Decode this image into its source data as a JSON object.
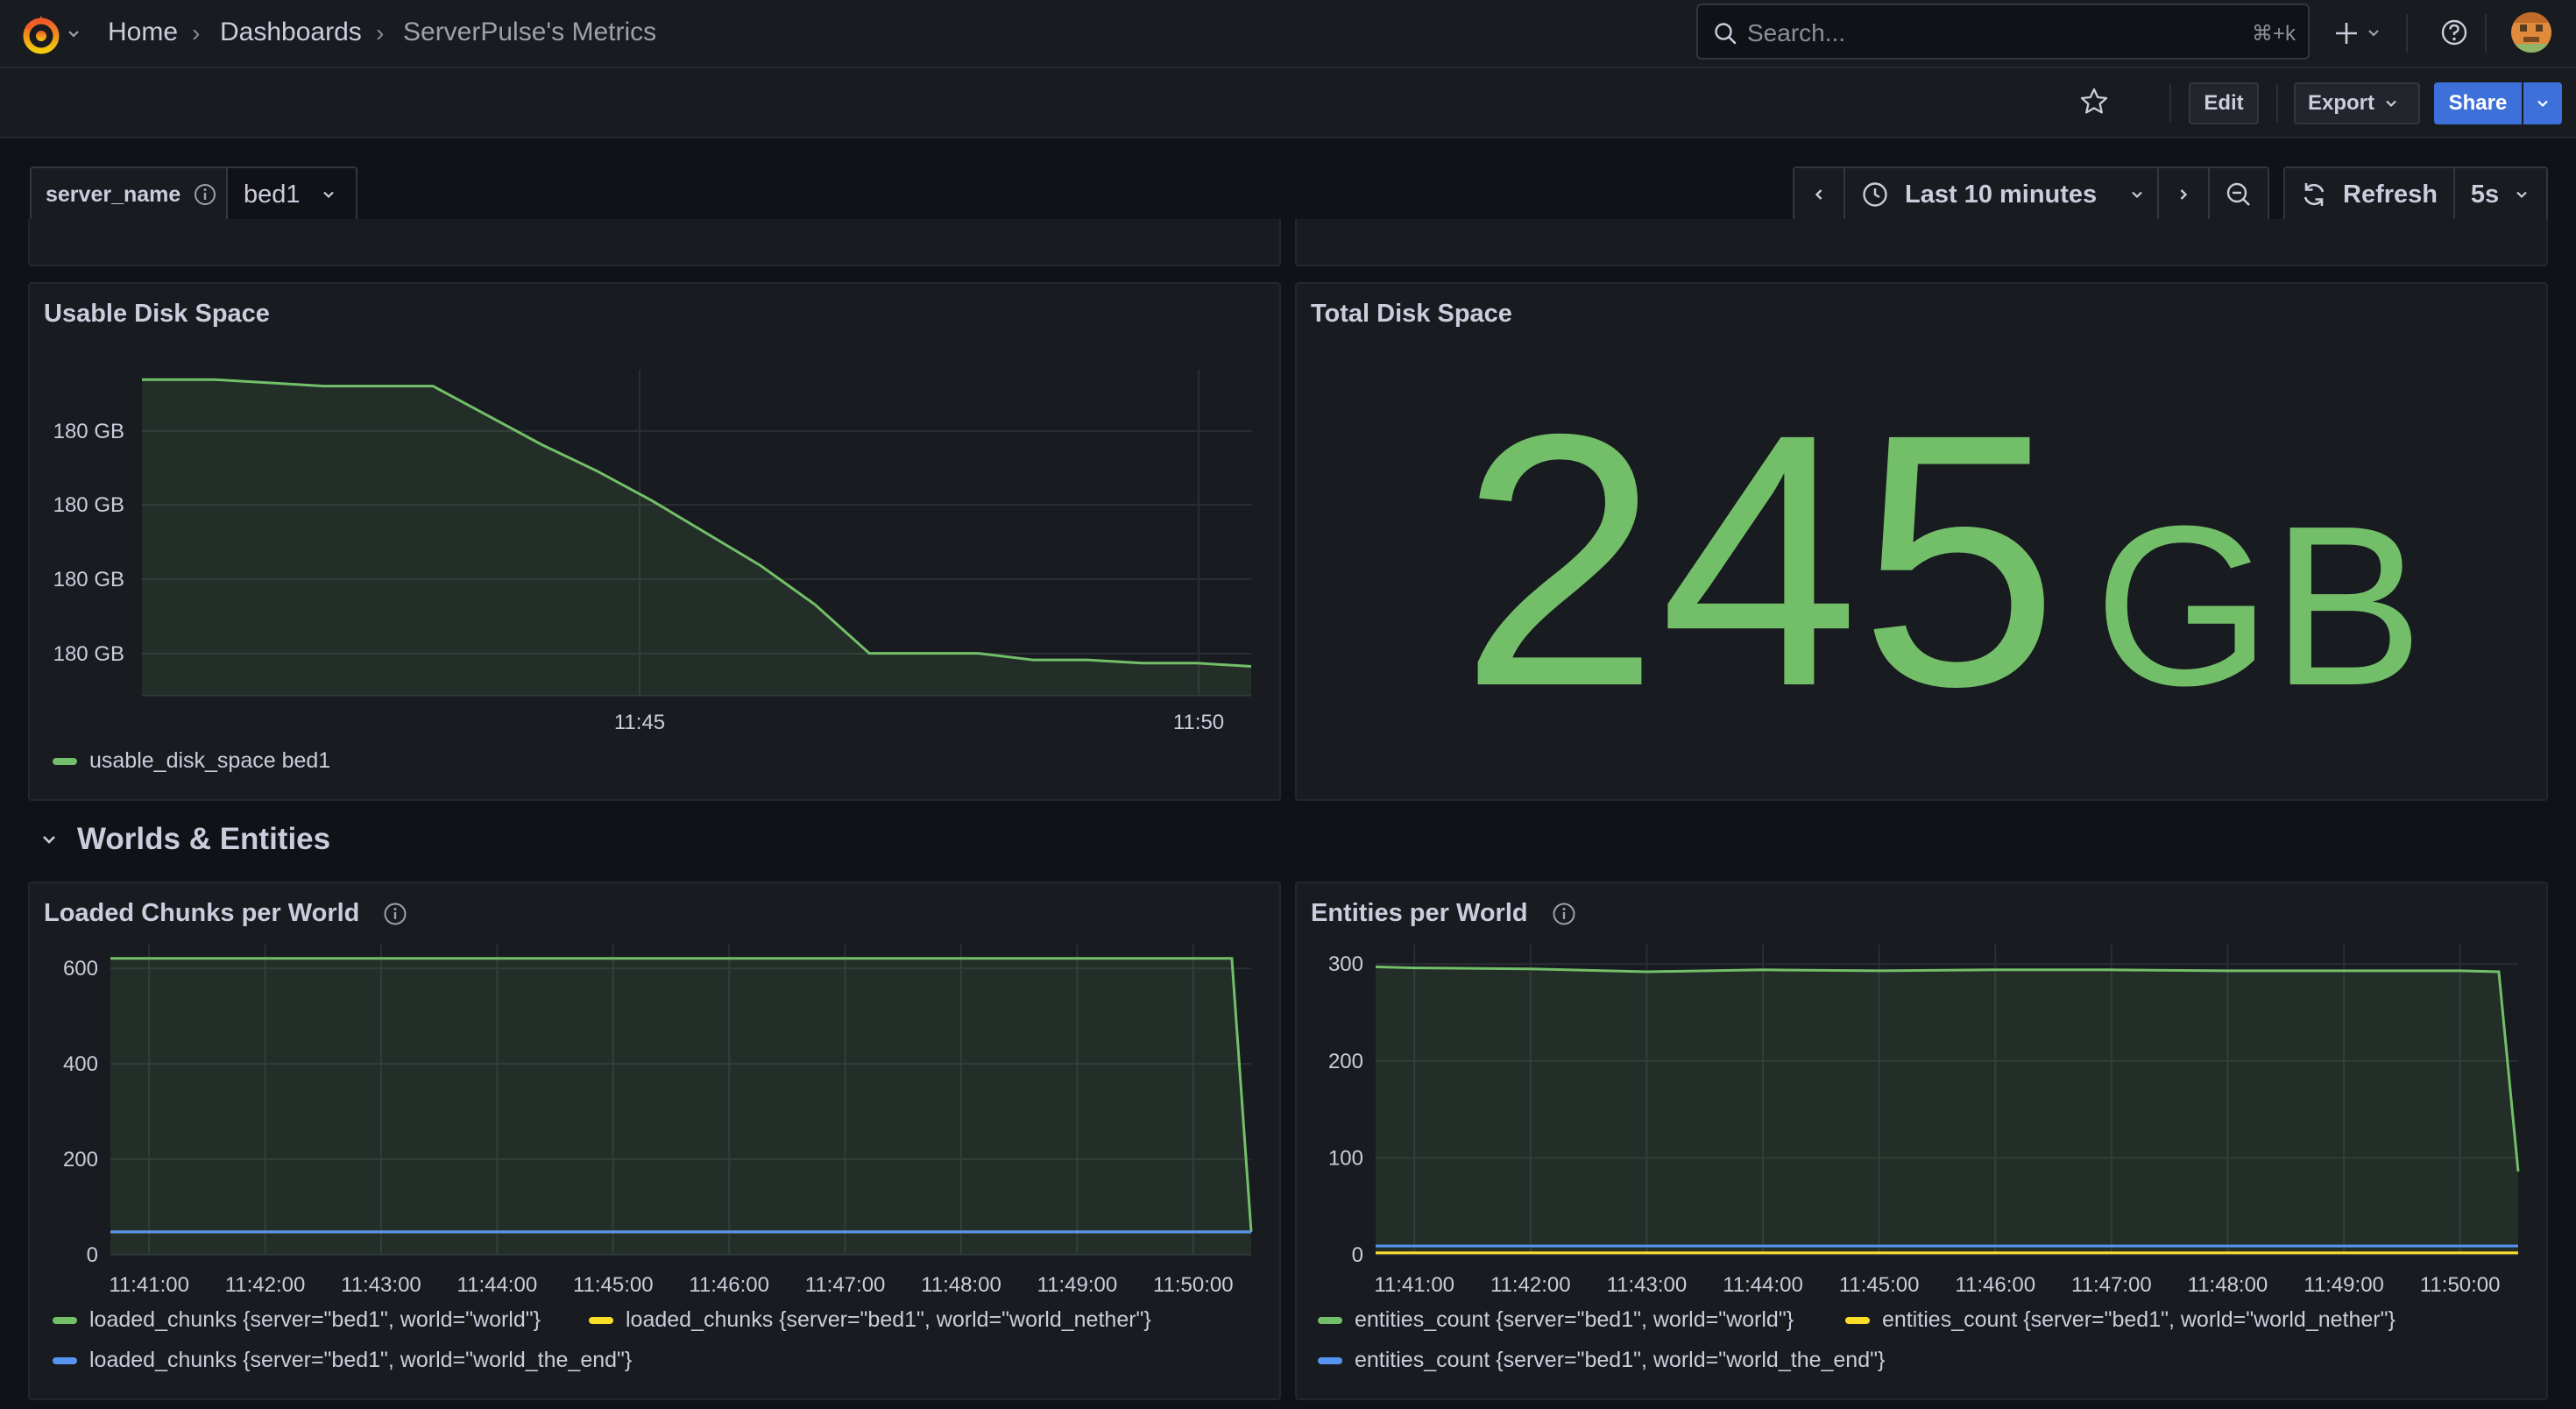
{
  "nav": {
    "breadcrumbs": [
      "Home",
      "Dashboards",
      "ServerPulse's Metrics"
    ],
    "search_placeholder": "Search...",
    "search_shortcut": "⌘+k"
  },
  "toolbar": {
    "edit_label": "Edit",
    "export_label": "Export",
    "share_label": "Share"
  },
  "variables": {
    "name": "server_name",
    "value": "bed1"
  },
  "time": {
    "range_label": "Last 10 minutes",
    "refresh_label": "Refresh",
    "refresh_interval": "5s"
  },
  "colors": {
    "green": "#73bf69",
    "yellow": "#fade2a",
    "blue": "#5794f2",
    "primary": "#3d71d9"
  },
  "panels": {
    "usable_disk": {
      "title": "Usable Disk Space",
      "legend": [
        "usable_disk_space bed1"
      ]
    },
    "total_disk": {
      "title": "Total Disk Space",
      "value": "245",
      "unit": "GB"
    },
    "row": {
      "title": "Worlds & Entities"
    },
    "chunks": {
      "title": "Loaded Chunks per World",
      "legend": [
        "loaded_chunks {server=\"bed1\", world=\"world\"}",
        "loaded_chunks {server=\"bed1\", world=\"world_nether\"}",
        "loaded_chunks {server=\"bed1\", world=\"world_the_end\"}"
      ]
    },
    "entities": {
      "title": "Entities per World",
      "legend": [
        "entities_count {server=\"bed1\", world=\"world\"}",
        "entities_count {server=\"bed1\", world=\"world_nether\"}",
        "entities_count {server=\"bed1\", world=\"world_the_end\"}"
      ]
    }
  },
  "chart_data": [
    {
      "type": "area",
      "title": "Usable Disk Space",
      "y_tick_labels": [
        "180 GB",
        "180 GB",
        "180 GB",
        "180 GB"
      ],
      "x_tick_labels": [
        "11:45",
        "11:50"
      ],
      "series": [
        {
          "name": "usable_disk_space bed1",
          "color": "#73bf69",
          "x": [
            "11:40:20",
            "11:41:00",
            "11:41:30",
            "11:42:00",
            "11:42:30",
            "11:43:00",
            "11:43:30",
            "11:44:00",
            "11:44:30",
            "11:45:00",
            "11:45:30",
            "11:46:00",
            "11:46:30",
            "11:47:00",
            "11:47:30",
            "11:48:00",
            "11:48:30",
            "11:49:00",
            "11:49:30",
            "11:50:00",
            "11:50:30"
          ],
          "values": [
            0.97,
            0.97,
            0.96,
            0.95,
            0.95,
            0.95,
            0.86,
            0.77,
            0.69,
            0.6,
            0.5,
            0.4,
            0.28,
            0.13,
            0.13,
            0.13,
            0.11,
            0.11,
            0.1,
            0.1,
            0.09
          ]
        }
      ]
    },
    {
      "type": "line",
      "title": "Loaded Chunks per World",
      "ylim": [
        0,
        650
      ],
      "y_ticks": [
        0,
        200,
        400,
        600
      ],
      "x_tick_labels": [
        "11:41:00",
        "11:42:00",
        "11:43:00",
        "11:44:00",
        "11:45:00",
        "11:46:00",
        "11:47:00",
        "11:48:00",
        "11:49:00",
        "11:50:00"
      ],
      "series": [
        {
          "name": "loaded_chunks {server=\"bed1\", world=\"world\"}",
          "color": "#73bf69",
          "x": [
            "11:40:40",
            "11:50:20",
            "11:50:30"
          ],
          "values": [
            621,
            621,
            48
          ]
        },
        {
          "name": "loaded_chunks {server=\"bed1\", world=\"world_nether\"}",
          "color": "#fade2a",
          "x": [
            "11:40:40",
            "11:50:30"
          ],
          "values": [
            48,
            48
          ]
        },
        {
          "name": "loaded_chunks {server=\"bed1\", world=\"world_the_end\"}",
          "color": "#5794f2",
          "x": [
            "11:40:40",
            "11:50:30"
          ],
          "values": [
            48,
            48
          ]
        }
      ]
    },
    {
      "type": "line",
      "title": "Entities per World",
      "ylim": [
        0,
        320
      ],
      "y_ticks": [
        0,
        100,
        200,
        300
      ],
      "x_tick_labels": [
        "11:41:00",
        "11:42:00",
        "11:43:00",
        "11:44:00",
        "11:45:00",
        "11:46:00",
        "11:47:00",
        "11:48:00",
        "11:49:00",
        "11:50:00"
      ],
      "series": [
        {
          "name": "entities_count {server=\"bed1\", world=\"world\"}",
          "color": "#73bf69",
          "x": [
            "11:40:40",
            "11:41:00",
            "11:42:00",
            "11:43:00",
            "11:44:00",
            "11:45:00",
            "11:46:00",
            "11:47:00",
            "11:48:00",
            "11:49:00",
            "11:50:00",
            "11:50:20",
            "11:50:30"
          ],
          "values": [
            297,
            296,
            295,
            292,
            294,
            293,
            294,
            294,
            293,
            293,
            293,
            292,
            86
          ]
        },
        {
          "name": "entities_count {server=\"bed1\", world=\"world_nether\"}",
          "color": "#fade2a",
          "x": [
            "11:40:40",
            "11:50:30"
          ],
          "values": [
            2,
            2
          ]
        },
        {
          "name": "entities_count {server=\"bed1\", world=\"world_the_end\"}",
          "color": "#5794f2",
          "x": [
            "11:40:40",
            "11:50:30"
          ],
          "values": [
            9,
            9
          ]
        }
      ]
    }
  ]
}
